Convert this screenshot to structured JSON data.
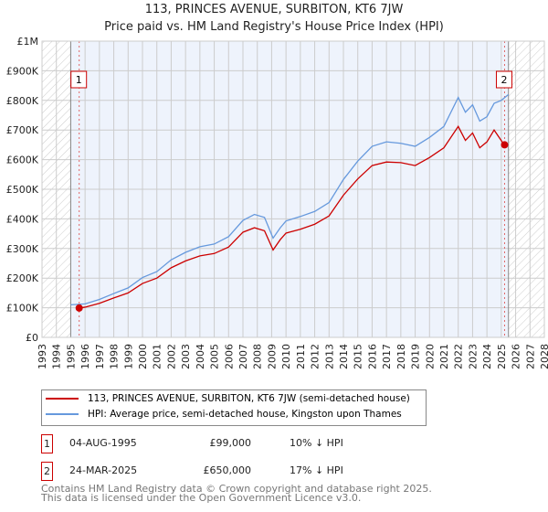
{
  "chart_data": {
    "type": "line",
    "title": "113, PRINCES AVENUE, SURBITON, KT6 7JW",
    "subtitle": "Price paid vs. HM Land Registry's House Price Index (HPI)",
    "xlim": [
      1993,
      2028
    ],
    "ylim": [
      0,
      1000000
    ],
    "x_ticks": [
      "1993",
      "1994",
      "1995",
      "1996",
      "1997",
      "1998",
      "1999",
      "2000",
      "2001",
      "2002",
      "2003",
      "2004",
      "2005",
      "2006",
      "2007",
      "2008",
      "2009",
      "2010",
      "2011",
      "2012",
      "2013",
      "2014",
      "2015",
      "2016",
      "2017",
      "2018",
      "2019",
      "2020",
      "2021",
      "2022",
      "2023",
      "2024",
      "2025",
      "2026",
      "2027",
      "2028"
    ],
    "y_ticks": [
      "£0",
      "£100K",
      "£200K",
      "£300K",
      "£400K",
      "£500K",
      "£600K",
      "£700K",
      "£800K",
      "£900K",
      "£1M"
    ],
    "series": [
      {
        "name": "113, PRINCES AVENUE, SURBITON, KT6 7JW (semi-detached house)",
        "color": "#cc0000",
        "x": [
          1995.6,
          1996,
          1997,
          1998,
          1999,
          2000,
          2001,
          2002,
          2003,
          2004,
          2005,
          2006,
          2007,
          2007.8,
          2008.5,
          2009.1,
          2009.6,
          2010,
          2011,
          2012,
          2013,
          2014,
          2015,
          2016,
          2017,
          2018,
          2019,
          2020,
          2021,
          2022,
          2022.5,
          2023,
          2023.5,
          2024,
          2024.5,
          2025.2
        ],
        "y": [
          99000,
          102000,
          115000,
          133000,
          150000,
          182000,
          200000,
          235000,
          258000,
          275000,
          283000,
          305000,
          355000,
          370000,
          360000,
          295000,
          330000,
          352000,
          365000,
          382000,
          410000,
          480000,
          535000,
          580000,
          592000,
          590000,
          580000,
          607000,
          640000,
          712000,
          665000,
          690000,
          640000,
          660000,
          700000,
          650000
        ]
      },
      {
        "name": "HPI: Average price, semi-detached house, Kingston upon Thames",
        "color": "#6699dd",
        "x": [
          1995,
          1996,
          1997,
          1998,
          1999,
          2000,
          2001,
          2002,
          2003,
          2004,
          2005,
          2006,
          2007,
          2007.8,
          2008.5,
          2009.1,
          2009.6,
          2010,
          2011,
          2012,
          2013,
          2014,
          2015,
          2016,
          2017,
          2018,
          2019,
          2020,
          2021,
          2022,
          2022.5,
          2023,
          2023.5,
          2024,
          2024.5,
          2025,
          2025.5
        ],
        "y": [
          110000,
          113000,
          128000,
          148000,
          167000,
          202000,
          222000,
          262000,
          287000,
          306000,
          315000,
          340000,
          395000,
          415000,
          405000,
          335000,
          370000,
          393000,
          408000,
          425000,
          455000,
          533000,
          595000,
          645000,
          660000,
          655000,
          645000,
          675000,
          712000,
          810000,
          760000,
          785000,
          730000,
          745000,
          790000,
          800000,
          820000
        ]
      }
    ],
    "sales": [
      {
        "label": "1",
        "x": 1995.59,
        "y": 99000
      },
      {
        "label": "2",
        "x": 2025.23,
        "y": 650000
      }
    ]
  },
  "legend": [
    "113, PRINCES AVENUE, SURBITON, KT6 7JW (semi-detached house)",
    "HPI: Average price, semi-detached house, Kingston upon Thames"
  ],
  "transactions": [
    {
      "num": "1",
      "date": "04-AUG-1995",
      "price": "£99,000",
      "hpi": "10% ↓ HPI"
    },
    {
      "num": "2",
      "date": "24-MAR-2025",
      "price": "£650,000",
      "hpi": "17% ↓ HPI"
    }
  ],
  "footer": [
    "Contains HM Land Registry data © Crown copyright and database right 2025.",
    "This data is licensed under the Open Government Licence v3.0."
  ]
}
